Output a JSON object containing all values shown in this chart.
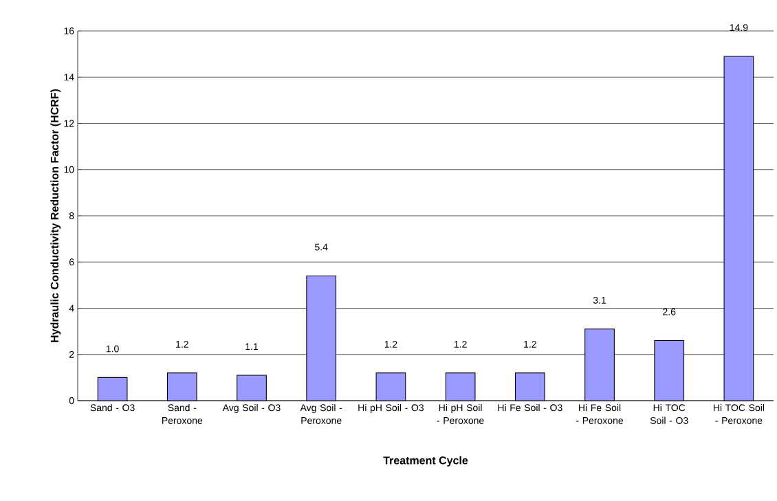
{
  "chart_data": {
    "type": "bar",
    "xlabel": "Treatment Cycle",
    "ylabel": "Hydraulic Conductivity Reduction Factor (HCRF)",
    "categories": [
      "Sand - O3",
      "Sand - Peroxone",
      "Avg Soil - O3",
      "Avg Soil - Peroxone",
      "Hi pH Soil - O3",
      "Hi pH Soil - Peroxone",
      "Hi Fe Soil - O3",
      "Hi Fe Soil - Peroxone",
      "Hi TOC Soil - O3",
      "Hi TOC Soil - Peroxone"
    ],
    "values": [
      1.0,
      1.2,
      1.1,
      5.4,
      1.2,
      1.2,
      1.2,
      3.1,
      2.6,
      14.9
    ],
    "value_labels": [
      "1.0",
      "1.2",
      "1.1",
      "5.4",
      "1.2",
      "1.2",
      "1.2",
      "3.1",
      "2.6",
      "14.9"
    ],
    "color": "#9999ff",
    "ylim": [
      0,
      16
    ],
    "yticks": [
      0,
      2,
      4,
      6,
      8,
      10,
      12,
      14,
      16
    ],
    "grid": "y"
  }
}
